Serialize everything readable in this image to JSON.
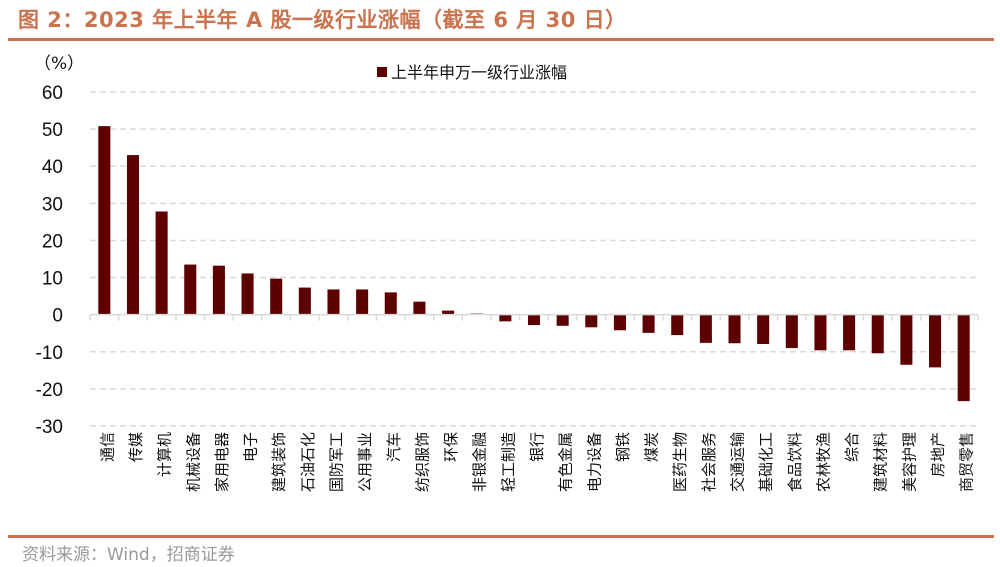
{
  "header": {
    "title": "图 2：2023 年上半年 A 股一级行业涨幅（截至 6 月 30 日）"
  },
  "footer": {
    "source": "资料来源：Wind，招商证券"
  },
  "colors": {
    "accent": "#c9734f",
    "bar": "#5c0000",
    "grid": "#d9d9d9"
  },
  "chart_data": {
    "type": "bar",
    "title": "",
    "ylabel": "（%）",
    "xlabel": "",
    "ylim": [
      -30,
      60
    ],
    "yticks": [
      60,
      50,
      40,
      30,
      20,
      10,
      0,
      -10,
      -20,
      -30
    ],
    "ytick_labels": [
      "60",
      "50",
      "40",
      "30",
      "20",
      "10",
      "0",
      "-10",
      "-20",
      "-30"
    ],
    "grid": true,
    "legend_position": "top-center",
    "categories": [
      "通信",
      "传媒",
      "计算机",
      "机械设备",
      "家用电器",
      "电子",
      "建筑装饰",
      "石油石化",
      "国防军工",
      "公用事业",
      "汽车",
      "纺织服饰",
      "环保",
      "非银金融",
      "轻工制造",
      "银行",
      "有色金属",
      "电力设备",
      "钢铁",
      "煤炭",
      "医药生物",
      "社会服务",
      "交通运输",
      "基础化工",
      "食品饮料",
      "农林牧渔",
      "综合",
      "建筑材料",
      "美容护理",
      "房地产",
      "商贸零售"
    ],
    "series": [
      {
        "name": "上半年申万一级行业涨幅",
        "values": [
          50.8,
          43.0,
          27.8,
          13.5,
          13.2,
          11.1,
          9.7,
          7.3,
          6.8,
          6.8,
          6.0,
          3.5,
          1.1,
          0.3,
          -1.8,
          -2.8,
          -3.0,
          -3.4,
          -4.2,
          -4.9,
          -5.5,
          -7.6,
          -7.7,
          -7.9,
          -9.0,
          -9.6,
          -9.6,
          -10.4,
          -13.5,
          -14.2,
          -23.3
        ]
      }
    ]
  }
}
